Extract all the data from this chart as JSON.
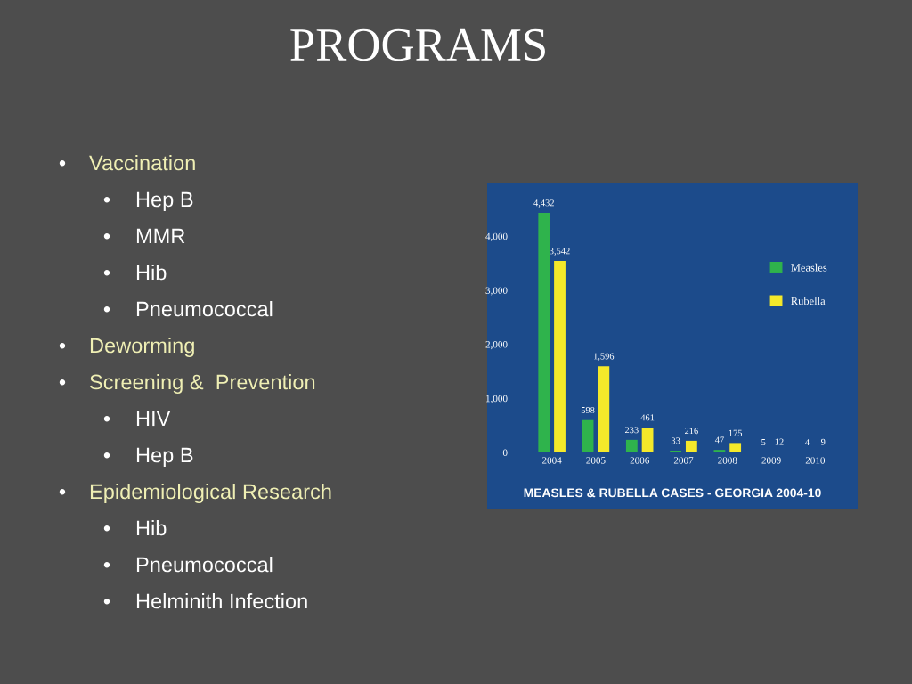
{
  "chart_data": [
    {
      "type": "other",
      "title": "PROGRAMS",
      "annotations": [
        "• Vaccination",
        "• Hep B",
        "• MMR",
        "• Hib",
        "• Pneumococcal",
        "• Deworming",
        "• Screening &  Prevention",
        "• HIV",
        "• Hep B",
        "• Epidemiological Research",
        "• Hib",
        "• Pneumococcal",
        "• Helminith Infection"
      ]
    },
    {
      "type": "bar",
      "title": "MEASLES & RUBELLA CASES - GEORGIA 2004-10",
      "categories": [
        "2004",
        "2005",
        "2006",
        "2007",
        "2008",
        "2009",
        "2010"
      ],
      "series": [
        {
          "name": "Measles",
          "color": "#2fb34c",
          "values": [
            4432,
            598,
            233,
            33,
            47,
            5,
            4
          ],
          "value_labels": [
            "4,432",
            "598",
            "233",
            "33",
            "47",
            "5",
            "4"
          ]
        },
        {
          "name": "Rubella",
          "color": "#f4e92a",
          "values": [
            3542,
            1596,
            461,
            216,
            175,
            12,
            9
          ],
          "value_labels": [
            "3,542",
            "1,596",
            "461",
            "216",
            "175",
            "12",
            "9"
          ]
        }
      ],
      "ylim": [
        0,
        4432
      ],
      "yticks": [
        0,
        {
          "value": 1000,
          "label": "1,000"
        },
        {
          "value": 2000,
          "label": "2,000"
        },
        {
          "value": 3000,
          "label": "3,000"
        },
        {
          "value": 4000,
          "label": "4,000"
        }
      ],
      "legend": "right",
      "grid": false
    }
  ]
}
